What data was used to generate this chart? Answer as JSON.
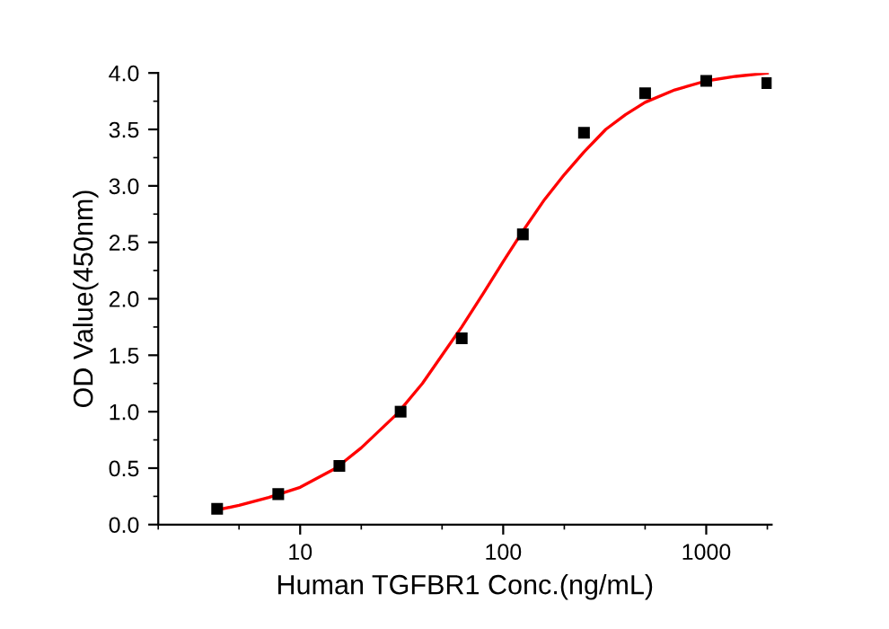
{
  "chart_data": {
    "type": "scatter",
    "xlabel": "Human TGFBR1 Conc.(ng/mL)",
    "ylabel": "OD Value(450nm)",
    "log": "x",
    "grid": false,
    "marker": "square",
    "xlim": [
      2,
      2100
    ],
    "xticks": [
      10,
      100,
      1000
    ],
    "ylim": [
      0,
      4.0
    ],
    "yticks": [
      {
        "value": 0,
        "label": "0.0"
      },
      {
        "value": 0.5,
        "label": "0.5"
      },
      {
        "value": 1,
        "label": "1.0"
      },
      {
        "value": 1.5,
        "label": "1.5"
      },
      {
        "value": 2,
        "label": "2.0"
      },
      {
        "value": 2.5,
        "label": "2.5"
      },
      {
        "value": 3,
        "label": "3.0"
      },
      {
        "value": 3.5,
        "label": "3.5"
      },
      {
        "value": 4,
        "label": "4.0"
      }
    ],
    "series": [
      {
        "color": "#000000",
        "x": [
          3.9,
          7.8,
          15.6,
          31.25,
          62.5,
          125,
          250,
          500,
          1000,
          2000
        ],
        "values": [
          0.14,
          0.27,
          0.52,
          1.0,
          1.65,
          2.57,
          3.47,
          3.82,
          3.93,
          3.91
        ]
      },
      {
        "type": "line",
        "color": "#ff0000",
        "line_style": "solid",
        "marker": "none",
        "x": [
          3.9,
          5,
          7,
          10,
          15,
          20,
          30,
          40,
          50,
          62.5,
          80,
          100,
          125,
          160,
          200,
          250,
          320,
          400,
          500,
          700,
          1000,
          1400,
          2000
        ],
        "values": [
          0.13,
          0.17,
          0.24,
          0.33,
          0.5,
          0.68,
          0.98,
          1.25,
          1.5,
          1.75,
          2.05,
          2.33,
          2.6,
          2.88,
          3.1,
          3.3,
          3.5,
          3.63,
          3.74,
          3.85,
          3.93,
          3.97,
          4.0
        ]
      }
    ]
  }
}
